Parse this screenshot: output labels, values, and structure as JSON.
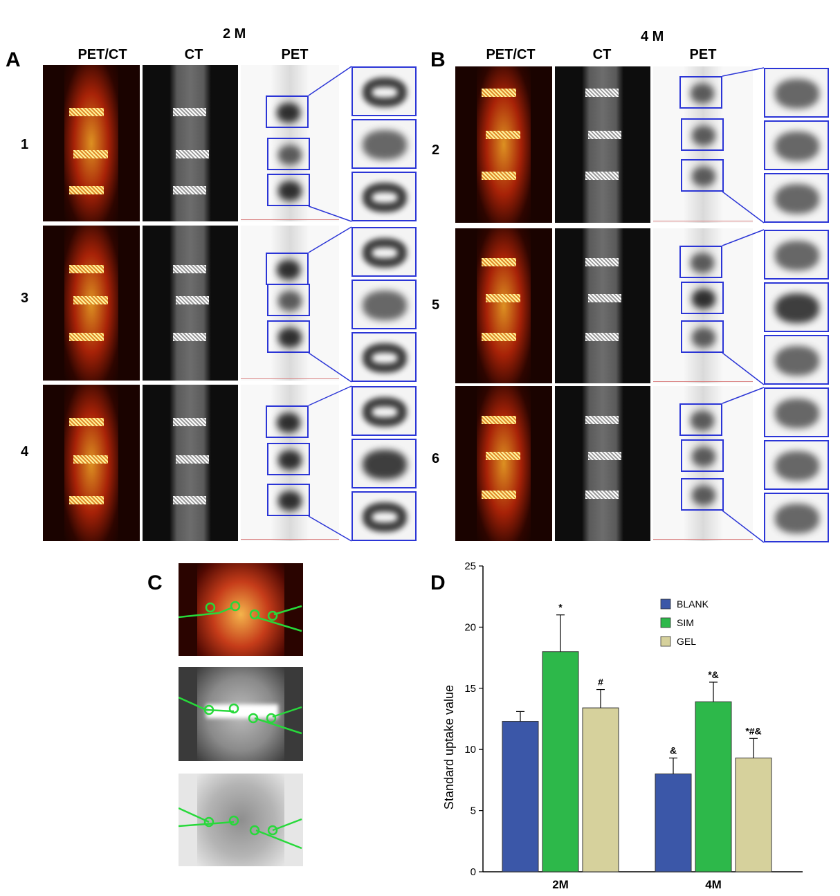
{
  "panels": {
    "A": {
      "letter": "A",
      "group": "2 M",
      "rows": [
        "1",
        "3",
        "4"
      ]
    },
    "B": {
      "letter": "B",
      "group": "4 M",
      "rows": [
        "2",
        "5",
        "6"
      ]
    },
    "C": {
      "letter": "C"
    },
    "D": {
      "letter": "D"
    }
  },
  "column_headers": [
    "PET/CT",
    "CT",
    "PET"
  ],
  "colors": {
    "blank": "#3b57a8",
    "sim": "#2db84a",
    "gel": "#d6d19c",
    "box": "#2b35d6",
    "roi": "#27d93a"
  },
  "chart_data": {
    "type": "bar",
    "title": "",
    "xlabel": "",
    "ylabel": "Standard uptake value",
    "ylim": [
      0,
      25
    ],
    "yticks": [
      0,
      5,
      10,
      15,
      20,
      25
    ],
    "categories": [
      "2M",
      "4M"
    ],
    "legend_position": "top-right",
    "series": [
      {
        "name": "BLANK",
        "values": [
          12.3,
          8.0
        ],
        "errors": [
          0.8,
          1.3
        ],
        "annotations": [
          "",
          "&"
        ]
      },
      {
        "name": "SIM",
        "values": [
          18.0,
          13.9
        ],
        "errors": [
          3.0,
          1.6
        ],
        "annotations": [
          "*",
          "*&"
        ]
      },
      {
        "name": "GEL",
        "values": [
          13.4,
          9.3
        ],
        "errors": [
          1.5,
          1.6
        ],
        "annotations": [
          "#",
          "*#&"
        ]
      }
    ]
  }
}
